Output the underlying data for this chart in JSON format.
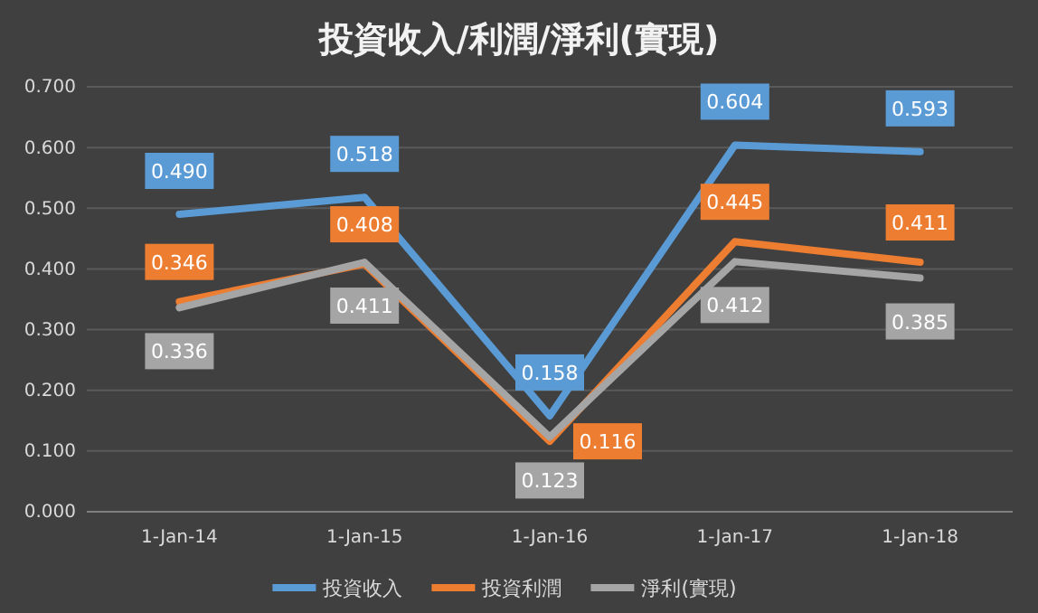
{
  "chart_data": {
    "type": "line",
    "title": "投資收入/利潤/淨利(實現)",
    "categories": [
      "1-Jan-14",
      "1-Jan-15",
      "1-Jan-16",
      "1-Jan-17",
      "1-Jan-18"
    ],
    "ylim": [
      0,
      0.7
    ],
    "yticks": [
      {
        "value": 0,
        "label": "0.000"
      },
      {
        "value": 0.1,
        "label": "0.100"
      },
      {
        "value": 0.2,
        "label": "0.200"
      },
      {
        "value": 0.3,
        "label": "0.300"
      },
      {
        "value": 0.4,
        "label": "0.400"
      },
      {
        "value": 0.5,
        "label": "0.500"
      },
      {
        "value": 0.6,
        "label": "0.600"
      },
      {
        "value": 0.7,
        "label": "0.700"
      }
    ],
    "grid": "y",
    "legend": "bottom",
    "marker": "none",
    "line_style": "solid",
    "series": [
      {
        "name": "投資收入",
        "color": "#5b9bd5",
        "values": [
          0.49,
          0.518,
          0.158,
          0.604,
          0.593
        ],
        "value_labels": [
          "0.490",
          "0.518",
          "0.158",
          "0.604",
          "0.593"
        ]
      },
      {
        "name": "投資利潤",
        "color": "#ed7d31",
        "values": [
          0.346,
          0.408,
          0.116,
          0.445,
          0.411
        ],
        "value_labels": [
          "0.346",
          "0.408",
          "0.116",
          "0.445",
          "0.411"
        ]
      },
      {
        "name": "淨利(實現)",
        "color": "#a5a5a5",
        "values": [
          0.336,
          0.411,
          0.123,
          0.412,
          0.385
        ],
        "value_labels": [
          "0.336",
          "0.411",
          "0.123",
          "0.412",
          "0.385"
        ]
      }
    ]
  }
}
